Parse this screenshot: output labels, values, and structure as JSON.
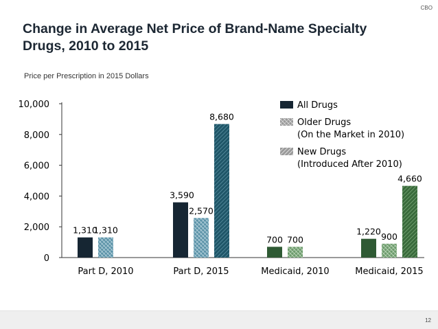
{
  "header": {
    "org": "CBO"
  },
  "footer": {
    "page_number": "12"
  },
  "colors": {
    "all_drugs": "#162633",
    "older_drugs": "#5c93a8",
    "new_drugs": "#1f5668",
    "medicaid_all": "#2f5a34",
    "medicaid_older": "#6c9b6c",
    "medicaid_new": "#3a6b3c"
  },
  "chart_data": {
    "type": "bar",
    "title": "Change in Average Net Price of Brand-Name Specialty Drugs, 2010 to 2015",
    "subtitle": "Price per Prescription in 2015 Dollars",
    "categories": [
      "Part D, 2010",
      "Part D, 2015",
      "Medicaid, 2010",
      "Medicaid, 2015"
    ],
    "series": [
      {
        "name": "All Drugs",
        "values": [
          1310,
          3590,
          700,
          1220
        ],
        "labels": [
          "1,310",
          "3,590",
          "700",
          "1,220"
        ]
      },
      {
        "name": "Older Drugs (On the Market in 2010)",
        "values": [
          1310,
          2570,
          700,
          900
        ],
        "labels": [
          "1,310",
          "2,570",
          "700",
          "900"
        ]
      },
      {
        "name": "New Drugs (Introduced After 2010)",
        "values": [
          null,
          8680,
          null,
          4660
        ],
        "labels": [
          null,
          "8,680",
          null,
          "4,660"
        ]
      }
    ],
    "legend": [
      {
        "line1": "All Drugs",
        "line2": ""
      },
      {
        "line1": "Older Drugs",
        "line2": "(On the Market in 2010)"
      },
      {
        "line1": "New Drugs",
        "line2": "(Introduced After 2010)"
      }
    ],
    "yticks": [
      0,
      2000,
      4000,
      6000,
      8000,
      10000
    ],
    "ytick_labels": [
      "0",
      "2,000",
      "4,000",
      "6,000",
      "8,000",
      "10,000"
    ],
    "ylim": [
      0,
      10000
    ],
    "xlabel": "",
    "ylabel": "",
    "legend_position": "top-right",
    "grid": false
  }
}
